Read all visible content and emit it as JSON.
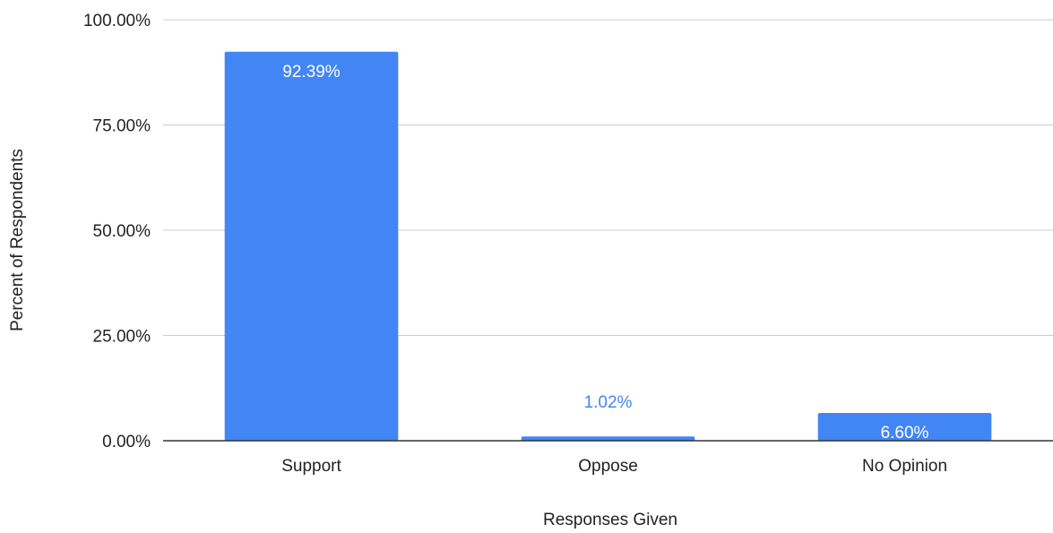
{
  "chart_data": {
    "type": "bar",
    "title": "",
    "xlabel": "Responses Given",
    "ylabel": "Percent of Respondents",
    "categories": [
      "Support",
      "Oppose",
      "No Opinion"
    ],
    "values": [
      92.39,
      1.02,
      6.6
    ],
    "data_labels": [
      "92.39%",
      "1.02%",
      "6.60%"
    ],
    "ylim": [
      0,
      100
    ],
    "yticks": [
      0,
      25,
      50,
      75,
      100
    ],
    "ytick_labels": [
      "0.00%",
      "25.00%",
      "50.00%",
      "75.00%",
      "100.00%"
    ],
    "bar_color": "#4285F4",
    "inside_label_color": "#FFFFFF",
    "outside_label_color": "#4285F4",
    "grid": true,
    "legend": "none"
  }
}
